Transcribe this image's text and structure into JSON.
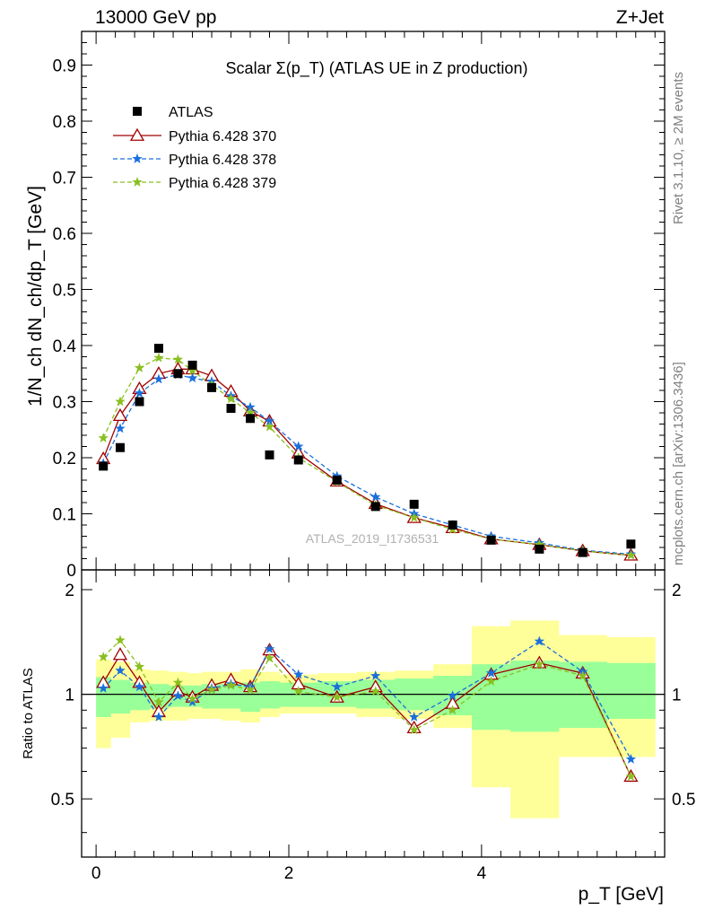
{
  "header": {
    "energy_label": "13000 GeV pp",
    "process_label": "Z+Jet",
    "side_label_rivet": "Rivet 3.1.10, ≥ 2M events",
    "side_label_mcplots": "mcplots.cern.ch [arXiv:1306.3436]",
    "watermark": "ATLAS_2019_I1736531"
  },
  "chart_data": [
    {
      "type": "scatter",
      "title": "Scalar Σ(p_T) (ATLAS UE in Z production)",
      "xlabel": "p_T [GeV]",
      "ylabel": "1/N_ch dN_ch/dp_T [GeV]",
      "xlim": [
        -0.15,
        5.9
      ],
      "ylim": [
        0,
        0.96
      ],
      "yticks": [
        0,
        0.1,
        0.2,
        0.3,
        0.4,
        0.5,
        0.6,
        0.7,
        0.8,
        0.9
      ],
      "ytick_labels": [
        "0",
        "0.1",
        "0.2",
        "0.3",
        "0.4",
        "0.5",
        "0.6",
        "0.7",
        "0.8",
        "0.9"
      ],
      "legend_position": "top-left",
      "x": [
        0.075,
        0.25,
        0.45,
        0.65,
        0.85,
        1.0,
        1.2,
        1.4,
        1.6,
        1.8,
        2.1,
        2.5,
        2.9,
        3.3,
        3.7,
        4.1,
        4.6,
        5.05,
        5.55
      ],
      "series": [
        {
          "name": "ATLAS",
          "color": "#000000",
          "marker": "square",
          "values": [
            0.185,
            0.218,
            0.3,
            0.395,
            0.35,
            0.365,
            0.325,
            0.288,
            0.27,
            0.205,
            0.196,
            0.16,
            0.113,
            0.117,
            0.08,
            0.053,
            0.037,
            0.031,
            0.046
          ]
        },
        {
          "name": "Pythia 6.428 370",
          "color": "#a00000",
          "marker": "triangle-open",
          "line": "solid",
          "values": [
            0.198,
            0.275,
            0.323,
            0.35,
            0.358,
            0.358,
            0.346,
            0.318,
            0.283,
            0.265,
            0.208,
            0.158,
            0.118,
            0.093,
            0.075,
            0.055,
            0.045,
            0.034,
            0.026
          ]
        },
        {
          "name": "Pythia 6.428 378",
          "color": "#1a6fdc",
          "marker": "star",
          "line": "dashed",
          "values": [
            0.19,
            0.252,
            0.315,
            0.34,
            0.348,
            0.342,
            0.336,
            0.31,
            0.29,
            0.265,
            0.22,
            0.167,
            0.13,
            0.1,
            0.08,
            0.06,
            0.048,
            0.035,
            0.028
          ]
        },
        {
          "name": "Pythia 6.428 379",
          "color": "#8abf20",
          "marker": "star",
          "line": "dashed",
          "values": [
            0.235,
            0.3,
            0.36,
            0.378,
            0.375,
            0.355,
            0.33,
            0.305,
            0.28,
            0.255,
            0.2,
            0.157,
            0.115,
            0.093,
            0.072,
            0.055,
            0.045,
            0.034,
            0.026
          ]
        }
      ]
    },
    {
      "type": "line",
      "xlabel": "p_T [GeV]",
      "ylabel": "Ratio to ATLAS",
      "xlim": [
        -0.15,
        5.9
      ],
      "ylim": [
        0.34,
        2.28
      ],
      "xticks": [
        0,
        2,
        4
      ],
      "xtick_labels": [
        "0",
        "2",
        "4"
      ],
      "yticks": [
        0.5,
        1,
        2
      ],
      "ytick_labels": [
        "0.5",
        "1",
        "2"
      ],
      "reference_line": 1,
      "bins": [
        [
          0.0,
          0.15
        ],
        [
          0.15,
          0.35
        ],
        [
          0.35,
          0.55
        ],
        [
          0.55,
          0.75
        ],
        [
          0.75,
          0.95
        ],
        [
          0.95,
          1.1
        ],
        [
          1.1,
          1.3
        ],
        [
          1.3,
          1.5
        ],
        [
          1.5,
          1.7
        ],
        [
          1.7,
          1.9
        ],
        [
          1.9,
          2.3
        ],
        [
          2.3,
          2.7
        ],
        [
          2.7,
          3.1
        ],
        [
          3.1,
          3.5
        ],
        [
          3.5,
          3.9
        ],
        [
          3.9,
          4.3
        ],
        [
          4.3,
          4.8
        ],
        [
          4.8,
          5.3
        ],
        [
          5.3,
          5.8
        ]
      ],
      "stat_band": {
        "color": "#99ff99",
        "lo": [
          0.86,
          0.88,
          0.9,
          0.91,
          0.92,
          0.92,
          0.91,
          0.91,
          0.89,
          0.91,
          0.92,
          0.92,
          0.91,
          0.9,
          0.87,
          0.79,
          0.78,
          0.8,
          0.85
        ],
        "hi": [
          1.12,
          1.1,
          1.08,
          1.07,
          1.06,
          1.06,
          1.07,
          1.07,
          1.08,
          1.09,
          1.08,
          1.09,
          1.1,
          1.11,
          1.13,
          1.22,
          1.25,
          1.24,
          1.23
        ]
      },
      "total_band": {
        "color": "#ffff99",
        "lo": [
          0.7,
          0.75,
          0.83,
          0.84,
          0.84,
          0.85,
          0.85,
          0.84,
          0.83,
          0.86,
          0.88,
          0.88,
          0.86,
          0.85,
          0.8,
          0.54,
          0.44,
          0.66,
          0.66
        ]
      },
      "total_band_hi": [
        1.26,
        1.24,
        1.18,
        1.17,
        1.16,
        1.15,
        1.16,
        1.16,
        1.18,
        1.16,
        1.14,
        1.15,
        1.16,
        1.17,
        1.22,
        1.57,
        1.63,
        1.48,
        1.46
      ],
      "series": [
        {
          "name": "Pythia 6.428 370",
          "color": "#a00000",
          "marker": "triangle-open",
          "line": "solid",
          "values": [
            1.08,
            1.3,
            1.08,
            0.89,
            1.02,
            0.98,
            1.06,
            1.1,
            1.05,
            1.34,
            1.07,
            0.98,
            1.05,
            0.8,
            0.94,
            1.14,
            1.23,
            1.15,
            0.58
          ]
        },
        {
          "name": "Pythia 6.428 378",
          "color": "#1a6fdc",
          "marker": "star",
          "line": "dashed",
          "values": [
            1.04,
            1.17,
            1.05,
            0.86,
            0.99,
            0.95,
            1.04,
            1.07,
            1.05,
            1.35,
            1.14,
            1.05,
            1.13,
            0.86,
            0.99,
            1.15,
            1.42,
            1.16,
            0.65
          ]
        },
        {
          "name": "Pythia 6.428 379",
          "color": "#8abf20",
          "marker": "star",
          "line": "dashed",
          "values": [
            1.28,
            1.43,
            1.2,
            0.95,
            1.08,
            0.97,
            1.03,
            1.06,
            1.03,
            1.27,
            1.02,
            0.98,
            1.02,
            0.79,
            0.9,
            1.09,
            1.22,
            1.13,
            0.58
          ]
        }
      ]
    }
  ]
}
